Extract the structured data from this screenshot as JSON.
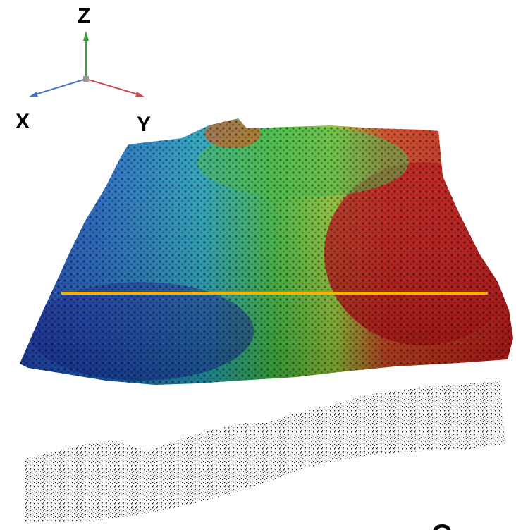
{
  "axes": {
    "z_label": "Z",
    "x_label": "X",
    "y_label": "Y",
    "z_color": "#3aa03a",
    "x_color": "#4a72c8",
    "y_color": "#c84a4a"
  },
  "point_cloud": {
    "colormap": [
      "#1020a0",
      "#1a6cc8",
      "#20a8b0",
      "#3cb838",
      "#a0c828",
      "#c85010",
      "#c01010"
    ],
    "profile_line_color": "#f2b400"
  },
  "cross_section": {
    "point_color": "#404040"
  },
  "corner_label": "C"
}
